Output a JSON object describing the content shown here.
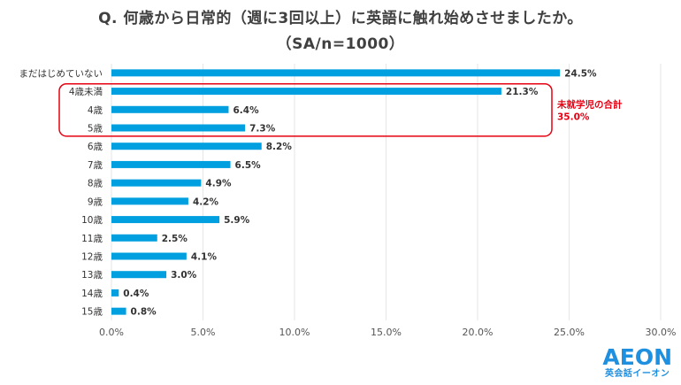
{
  "title_line1": "Q. 何歳から日常的（週に3回以上）に英語に触れ始めさせましたか。",
  "title_line2": "（SA/n=1000）",
  "chart_data": {
    "type": "bar",
    "orientation": "horizontal",
    "categories": [
      "まだはじめていない",
      "4歳未満",
      "4歳",
      "5歳",
      "6歳",
      "7歳",
      "8歳",
      "9歳",
      "10歳",
      "11歳",
      "12歳",
      "13歳",
      "14歳",
      "15歳"
    ],
    "values": [
      24.5,
      21.3,
      6.4,
      7.3,
      8.2,
      6.5,
      4.9,
      4.2,
      5.9,
      2.5,
      4.1,
      3.0,
      0.4,
      0.8
    ],
    "value_labels": [
      "24.5%",
      "21.3%",
      "6.4%",
      "7.3%",
      "8.2%",
      "6.5%",
      "4.9%",
      "4.2%",
      "5.9%",
      "2.5%",
      "4.1%",
      "3.0%",
      "0.4%",
      "0.8%"
    ],
    "xlim": [
      0,
      30
    ],
    "xticks": [
      0,
      5,
      10,
      15,
      20,
      25,
      30
    ],
    "xtick_labels": [
      "0.0%",
      "5.0%",
      "10.0%",
      "15.0%",
      "20.0%",
      "25.0%",
      "30.0%"
    ],
    "grid": "vertical",
    "bar_color": "#00a0e0",
    "annotation": {
      "label_line1": "未就学児の合計",
      "label_line2": "35.0%",
      "grouped_categories": [
        "4歳未満",
        "4歳",
        "5歳"
      ],
      "color": "#e60012"
    }
  },
  "logo": {
    "main": "AEON",
    "sub": "英会話イーオン"
  }
}
